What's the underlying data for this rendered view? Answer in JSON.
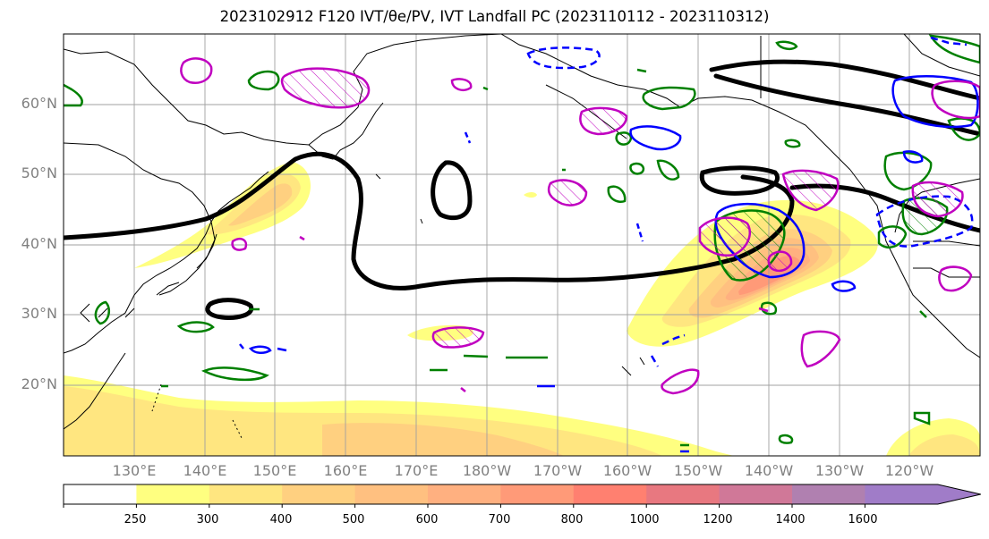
{
  "title": "2023102912 F120 IVT/θe/PV, IVT Landfall PC (2023110112 - 2023110312)",
  "map": {
    "lat_labels": [
      "60°N",
      "50°N",
      "40°N",
      "30°N",
      "20°N"
    ],
    "lat_values": [
      60,
      50,
      40,
      30,
      20
    ],
    "lon_labels": [
      "130°E",
      "140°E",
      "150°E",
      "160°E",
      "170°E",
      "180°W",
      "170°W",
      "160°W",
      "150°W",
      "140°W",
      "130°W",
      "120°W"
    ],
    "lon_values": [
      130,
      140,
      150,
      160,
      170,
      180,
      190,
      200,
      210,
      220,
      230,
      240
    ],
    "extent": {
      "lon": [
        120,
        250
      ],
      "lat": [
        10,
        70
      ]
    },
    "contour_colors": {
      "ivt_pc": "#000000",
      "theta_e": "#008000",
      "pv_pos": "#c000c0",
      "pv_neg": "#0000ff"
    }
  },
  "colorbar": {
    "ticks": [
      "250",
      "300",
      "400",
      "500",
      "600",
      "700",
      "800",
      "1000",
      "1200",
      "1400",
      "1600"
    ],
    "colors": [
      "#ffffff",
      "#ffff80",
      "#ffe680",
      "#ffd080",
      "#ffc080",
      "#ffb080",
      "#ff9a78",
      "#ff8070",
      "#e87880",
      "#d07898",
      "#b080b0",
      "#a07cc8"
    ],
    "extend": "max"
  }
}
